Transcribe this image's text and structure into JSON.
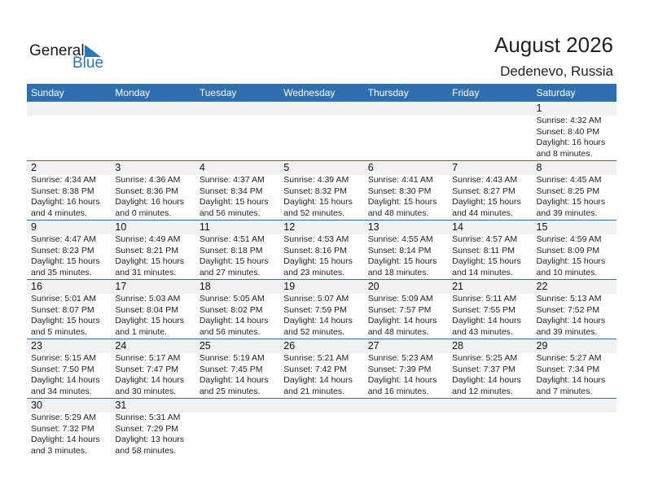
{
  "logo": {
    "word1": "General",
    "word2": "Blue",
    "accent": "#2a75bb"
  },
  "header": {
    "title": "August 2026",
    "location": "Dedenevo, Russia"
  },
  "weekdays": [
    "Sunday",
    "Monday",
    "Tuesday",
    "Wednesday",
    "Thursday",
    "Friday",
    "Saturday"
  ],
  "weeks": [
    [
      null,
      null,
      null,
      null,
      null,
      null,
      {
        "day": "1",
        "lines": [
          "Sunrise: 4:32 AM",
          "Sunset: 8:40 PM",
          "Daylight: 16 hours",
          "and 8 minutes."
        ]
      }
    ],
    [
      {
        "day": "2",
        "lines": [
          "Sunrise: 4:34 AM",
          "Sunset: 8:38 PM",
          "Daylight: 16 hours",
          "and 4 minutes."
        ]
      },
      {
        "day": "3",
        "lines": [
          "Sunrise: 4:36 AM",
          "Sunset: 8:36 PM",
          "Daylight: 16 hours",
          "and 0 minutes."
        ]
      },
      {
        "day": "4",
        "lines": [
          "Sunrise: 4:37 AM",
          "Sunset: 8:34 PM",
          "Daylight: 15 hours",
          "and 56 minutes."
        ]
      },
      {
        "day": "5",
        "lines": [
          "Sunrise: 4:39 AM",
          "Sunset: 8:32 PM",
          "Daylight: 15 hours",
          "and 52 minutes."
        ]
      },
      {
        "day": "6",
        "lines": [
          "Sunrise: 4:41 AM",
          "Sunset: 8:30 PM",
          "Daylight: 15 hours",
          "and 48 minutes."
        ]
      },
      {
        "day": "7",
        "lines": [
          "Sunrise: 4:43 AM",
          "Sunset: 8:27 PM",
          "Daylight: 15 hours",
          "and 44 minutes."
        ]
      },
      {
        "day": "8",
        "lines": [
          "Sunrise: 4:45 AM",
          "Sunset: 8:25 PM",
          "Daylight: 15 hours",
          "and 39 minutes."
        ]
      }
    ],
    [
      {
        "day": "9",
        "lines": [
          "Sunrise: 4:47 AM",
          "Sunset: 8:23 PM",
          "Daylight: 15 hours",
          "and 35 minutes."
        ]
      },
      {
        "day": "10",
        "lines": [
          "Sunrise: 4:49 AM",
          "Sunset: 8:21 PM",
          "Daylight: 15 hours",
          "and 31 minutes."
        ]
      },
      {
        "day": "11",
        "lines": [
          "Sunrise: 4:51 AM",
          "Sunset: 8:18 PM",
          "Daylight: 15 hours",
          "and 27 minutes."
        ]
      },
      {
        "day": "12",
        "lines": [
          "Sunrise: 4:53 AM",
          "Sunset: 8:16 PM",
          "Daylight: 15 hours",
          "and 23 minutes."
        ]
      },
      {
        "day": "13",
        "lines": [
          "Sunrise: 4:55 AM",
          "Sunset: 8:14 PM",
          "Daylight: 15 hours",
          "and 18 minutes."
        ]
      },
      {
        "day": "14",
        "lines": [
          "Sunrise: 4:57 AM",
          "Sunset: 8:11 PM",
          "Daylight: 15 hours",
          "and 14 minutes."
        ]
      },
      {
        "day": "15",
        "lines": [
          "Sunrise: 4:59 AM",
          "Sunset: 8:09 PM",
          "Daylight: 15 hours",
          "and 10 minutes."
        ]
      }
    ],
    [
      {
        "day": "16",
        "lines": [
          "Sunrise: 5:01 AM",
          "Sunset: 8:07 PM",
          "Daylight: 15 hours",
          "and 5 minutes."
        ]
      },
      {
        "day": "17",
        "lines": [
          "Sunrise: 5:03 AM",
          "Sunset: 8:04 PM",
          "Daylight: 15 hours",
          "and 1 minute."
        ]
      },
      {
        "day": "18",
        "lines": [
          "Sunrise: 5:05 AM",
          "Sunset: 8:02 PM",
          "Daylight: 14 hours",
          "and 56 minutes."
        ]
      },
      {
        "day": "19",
        "lines": [
          "Sunrise: 5:07 AM",
          "Sunset: 7:59 PM",
          "Daylight: 14 hours",
          "and 52 minutes."
        ]
      },
      {
        "day": "20",
        "lines": [
          "Sunrise: 5:09 AM",
          "Sunset: 7:57 PM",
          "Daylight: 14 hours",
          "and 48 minutes."
        ]
      },
      {
        "day": "21",
        "lines": [
          "Sunrise: 5:11 AM",
          "Sunset: 7:55 PM",
          "Daylight: 14 hours",
          "and 43 minutes."
        ]
      },
      {
        "day": "22",
        "lines": [
          "Sunrise: 5:13 AM",
          "Sunset: 7:52 PM",
          "Daylight: 14 hours",
          "and 39 minutes."
        ]
      }
    ],
    [
      {
        "day": "23",
        "lines": [
          "Sunrise: 5:15 AM",
          "Sunset: 7:50 PM",
          "Daylight: 14 hours",
          "and 34 minutes."
        ]
      },
      {
        "day": "24",
        "lines": [
          "Sunrise: 5:17 AM",
          "Sunset: 7:47 PM",
          "Daylight: 14 hours",
          "and 30 minutes."
        ]
      },
      {
        "day": "25",
        "lines": [
          "Sunrise: 5:19 AM",
          "Sunset: 7:45 PM",
          "Daylight: 14 hours",
          "and 25 minutes."
        ]
      },
      {
        "day": "26",
        "lines": [
          "Sunrise: 5:21 AM",
          "Sunset: 7:42 PM",
          "Daylight: 14 hours",
          "and 21 minutes."
        ]
      },
      {
        "day": "27",
        "lines": [
          "Sunrise: 5:23 AM",
          "Sunset: 7:39 PM",
          "Daylight: 14 hours",
          "and 16 minutes."
        ]
      },
      {
        "day": "28",
        "lines": [
          "Sunrise: 5:25 AM",
          "Sunset: 7:37 PM",
          "Daylight: 14 hours",
          "and 12 minutes."
        ]
      },
      {
        "day": "29",
        "lines": [
          "Sunrise: 5:27 AM",
          "Sunset: 7:34 PM",
          "Daylight: 14 hours",
          "and 7 minutes."
        ]
      }
    ],
    [
      {
        "day": "30",
        "lines": [
          "Sunrise: 5:29 AM",
          "Sunset: 7:32 PM",
          "Daylight: 14 hours",
          "and 3 minutes."
        ]
      },
      {
        "day": "31",
        "lines": [
          "Sunrise: 5:31 AM",
          "Sunset: 7:29 PM",
          "Daylight: 13 hours",
          "and 58 minutes."
        ]
      },
      null,
      null,
      null,
      null,
      null
    ]
  ]
}
